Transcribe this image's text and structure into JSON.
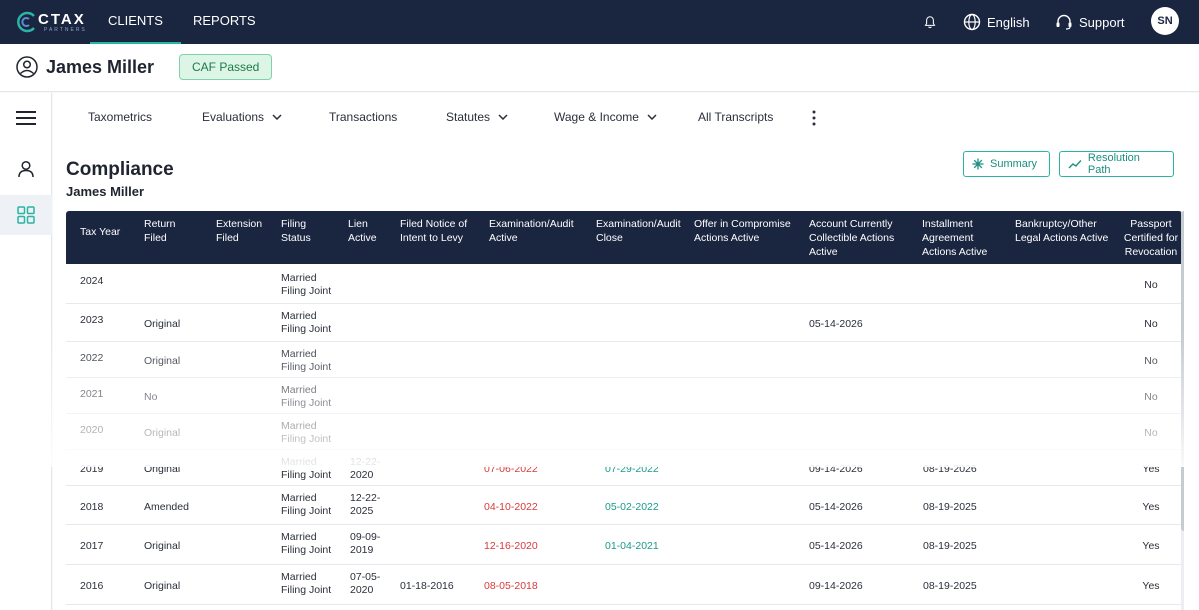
{
  "topnav": {
    "logo_text": "CTAX",
    "logo_sub": "PARTNERS",
    "tabs": [
      {
        "label": "CLIENTS",
        "active": true
      },
      {
        "label": "REPORTS",
        "active": false
      }
    ],
    "language_label": "English",
    "support_label": "Support",
    "avatar_initials": "SN"
  },
  "client": {
    "name": "James Miller",
    "badge": "CAF Passed"
  },
  "subtabs": [
    {
      "label": "Taxometrics",
      "has_dropdown": false
    },
    {
      "label": "Evaluations",
      "has_dropdown": true
    },
    {
      "label": "Transactions",
      "has_dropdown": false
    },
    {
      "label": "Statutes",
      "has_dropdown": true
    },
    {
      "label": "Wage & Income",
      "has_dropdown": true
    },
    {
      "label": "All Transcripts",
      "has_dropdown": false
    }
  ],
  "page": {
    "title": "Compliance",
    "subtitle": "James Miller",
    "summary_label": "Summary",
    "resolution_label": "Resolution Path"
  },
  "table": {
    "headers": [
      "Tax Year",
      "Return Filed",
      "Extension Filed",
      "Filing Status",
      "Lien Active",
      "Filed Notice of Intent to Levy",
      "Examination/Audit Active",
      "Examination/Audit Close",
      "Offer in Compromise Actions Active",
      "Account Currently Collectible Actions Active",
      "Installment Agreement Actions Active",
      "Bankruptcy/Other Legal Actions Active",
      "Passport Certified for Revocation"
    ],
    "rows": [
      {
        "year": "2024",
        "return_filed": "",
        "extension": "",
        "status": "Married Filing Joint",
        "lien": "",
        "levy": "",
        "exam_active": "",
        "exam_close": "",
        "oic": "",
        "cnc": "",
        "installment": "",
        "bankruptcy": "",
        "passport": "No"
      },
      {
        "year": "2023",
        "return_filed": "Original",
        "extension": "",
        "status": "Married Filing Joint",
        "lien": "",
        "levy": "",
        "exam_active": "",
        "exam_close": "",
        "oic": "",
        "cnc": "05-14-2026",
        "installment": "",
        "bankruptcy": "",
        "passport": "No"
      },
      {
        "year": "2022",
        "return_filed": "Original",
        "extension": "",
        "status": "Married Filing Joint",
        "lien": "",
        "levy": "",
        "exam_active": "",
        "exam_close": "",
        "oic": "",
        "cnc": "",
        "installment": "",
        "bankruptcy": "",
        "passport": "No"
      },
      {
        "year": "2021",
        "return_filed": "No",
        "extension": "",
        "status": "Married Filing Joint",
        "lien": "",
        "levy": "",
        "exam_active": "",
        "exam_close": "",
        "oic": "",
        "cnc": "",
        "installment": "",
        "bankruptcy": "",
        "passport": "No"
      },
      {
        "year": "2020",
        "return_filed": "Original",
        "extension": "",
        "status": "Married Filing Joint",
        "lien": "",
        "levy": "",
        "exam_active": "",
        "exam_close": "",
        "oic": "",
        "cnc": "",
        "installment": "",
        "bankruptcy": "",
        "passport": "No"
      },
      {
        "year": "2019",
        "return_filed": "Original",
        "extension": "",
        "status": "Married Filing Joint",
        "lien": "12-22-2020",
        "levy": "",
        "exam_active": "07-06-2022",
        "exam_close": "07-29-2022",
        "oic": "",
        "cnc": "09-14-2026",
        "installment": "08-19-2026",
        "bankruptcy": "",
        "passport": "Yes"
      },
      {
        "year": "2018",
        "return_filed": "Amended",
        "extension": "",
        "status": "Married Filing Joint",
        "lien": "12-22-2025",
        "levy": "",
        "exam_active": "04-10-2022",
        "exam_close": "05-02-2022",
        "oic": "",
        "cnc": "05-14-2026",
        "installment": "08-19-2025",
        "bankruptcy": "",
        "passport": "Yes"
      },
      {
        "year": "2017",
        "return_filed": "Original",
        "extension": "",
        "status": "Married Filing Joint",
        "lien": "09-09-2019",
        "levy": "",
        "exam_active": "12-16-2020",
        "exam_close": "01-04-2021",
        "oic": "",
        "cnc": "05-14-2026",
        "installment": "08-19-2025",
        "bankruptcy": "",
        "passport": "Yes"
      },
      {
        "year": "2016",
        "return_filed": "Original",
        "extension": "",
        "status": "Married Filing Joint",
        "lien": "07-05-2020",
        "levy": "01-18-2016",
        "exam_active": "08-05-2018",
        "exam_close": "",
        "oic": "",
        "cnc": "09-14-2026",
        "installment": "08-19-2025",
        "bankruptcy": "",
        "passport": "Yes"
      }
    ]
  },
  "colors": {
    "navy": "#1a2540",
    "teal": "#2bb3a3",
    "red": "#d83a3a",
    "green": "#1a9a8a"
  }
}
